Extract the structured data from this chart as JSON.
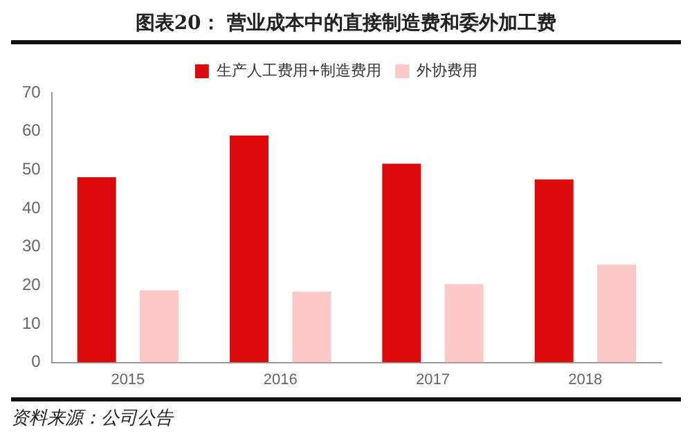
{
  "chart_data": {
    "type": "bar",
    "title": "图表20：  营业成本中的直接制造费和委外加工费",
    "categories": [
      "2015",
      "2016",
      "2017",
      "2018"
    ],
    "series": [
      {
        "name": "生产人工费用+制造费用",
        "color": "#dc0a0a",
        "values": [
          48.1,
          58.9,
          51.6,
          47.5
        ]
      },
      {
        "name": "外协费用",
        "color": "#fcc8c8",
        "values": [
          18.7,
          18.4,
          20.3,
          25.4
        ]
      }
    ],
    "ylim": [
      0,
      70
    ],
    "yticks": [
      0,
      10,
      20,
      30,
      40,
      50,
      60,
      70
    ],
    "grid": false,
    "legend": "top",
    "annotations": [
      "资料来源：公司公告"
    ]
  }
}
